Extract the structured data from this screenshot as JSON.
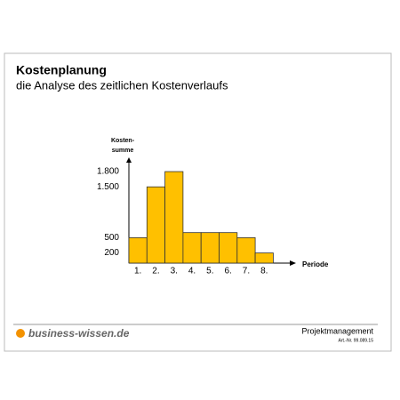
{
  "chart_data": {
    "type": "bar",
    "title": "Kostenplanung",
    "subtitle": "die Analyse des zeitlichen Kostenverlaufs",
    "ylabel": [
      "Kosten-",
      "summe"
    ],
    "xlabel": "Periode",
    "categories": [
      "1.",
      "2.",
      "3.",
      "4.",
      "5.",
      "6.",
      "7.",
      "8."
    ],
    "values": [
      500,
      1500,
      1800,
      600,
      600,
      600,
      500,
      200
    ],
    "color": "#ffc000",
    "ylim": [
      0,
      2000
    ],
    "yticks": [
      {
        "value": 200,
        "label": "200"
      },
      {
        "value": 500,
        "label": "500"
      },
      {
        "value": 1500,
        "label": "1.500"
      },
      {
        "value": 1800,
        "label": "1.800"
      }
    ],
    "grid": false
  },
  "footer": {
    "brand": "business-wissen.de",
    "section": "Projektmanagement",
    "article": "Art.-Nr. 99.089.15"
  }
}
